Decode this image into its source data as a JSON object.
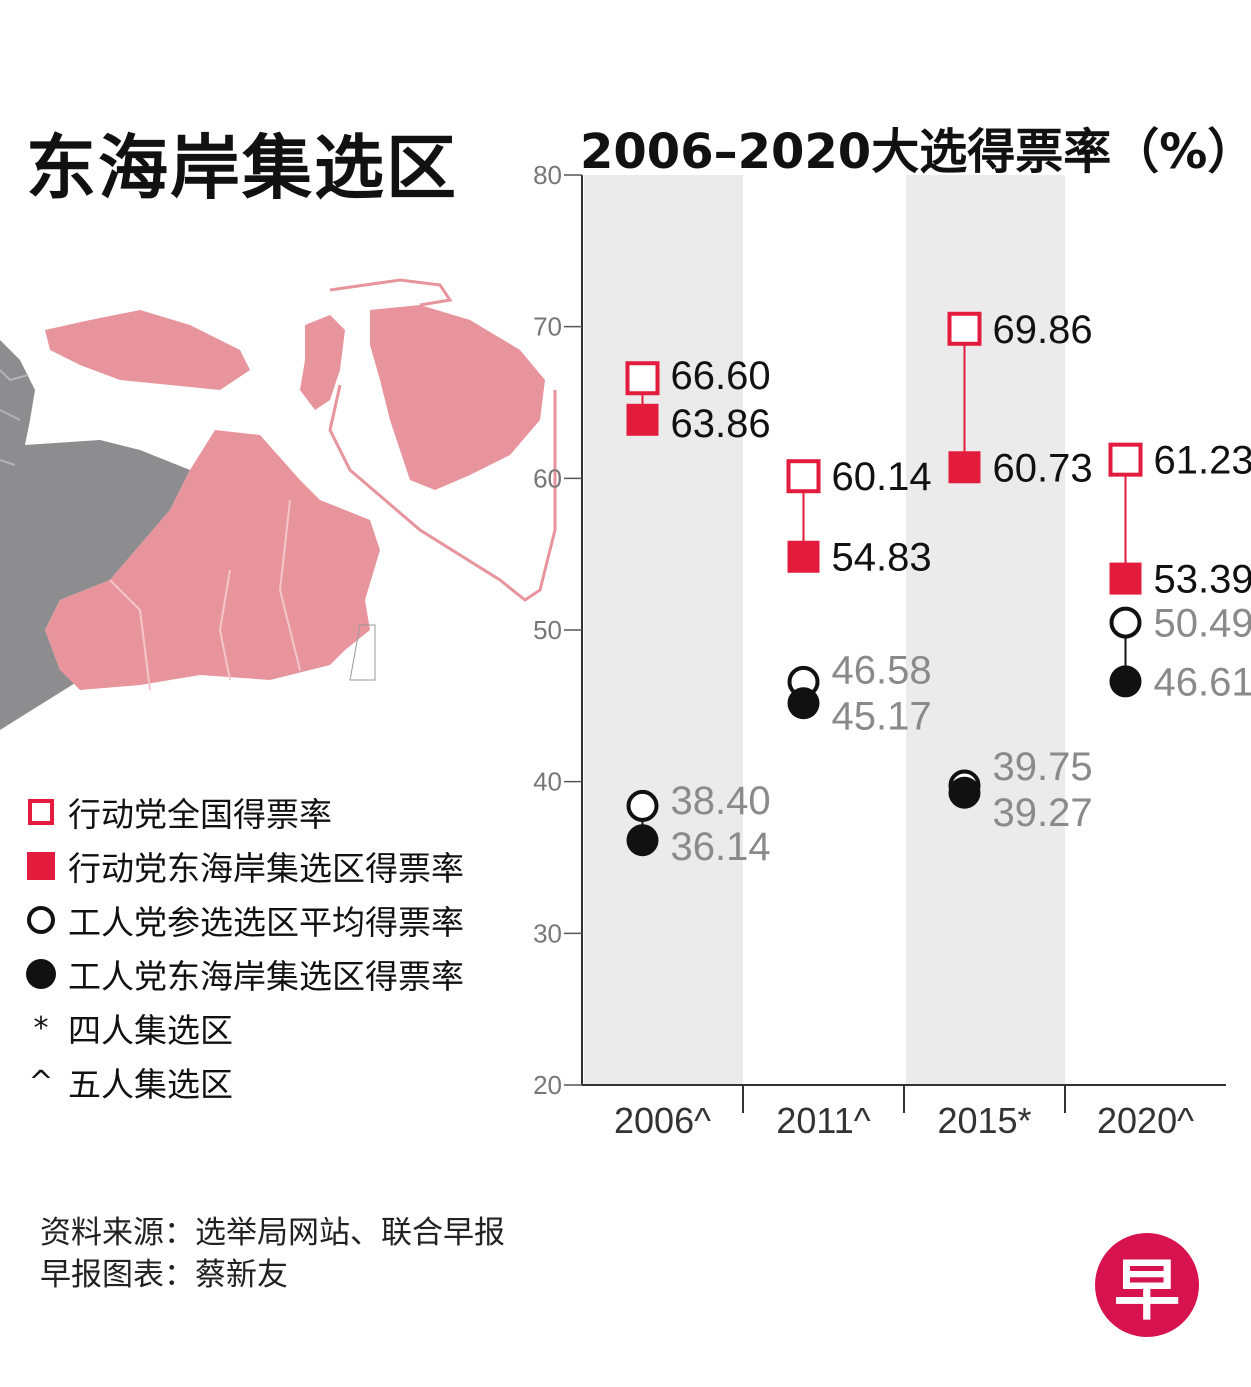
{
  "title": "东海岸集选区",
  "chart_title": "2006–2020大选得票率（%）",
  "legend": [
    {
      "symbol": "open-square",
      "label": "行动党全国得票率"
    },
    {
      "symbol": "filled-square",
      "label": "行动党东海岸集选区得票率"
    },
    {
      "symbol": "open-circle",
      "label": "工人党参选选区平均得票率"
    },
    {
      "symbol": "filled-circle",
      "label": "工人党东海岸集选区得票率"
    },
    {
      "symbol": "*",
      "label": "四人集选区"
    },
    {
      "symbol": "^",
      "label": "五人集选区"
    }
  ],
  "source": "资料来源：选举局网站、联合早报",
  "credit": "早报图表：蔡新友",
  "logo_text": "早",
  "colors": {
    "pap": "#e31b3c",
    "wp": "#111111",
    "wp_label": "#8a8a8a",
    "band": "#ebebeb",
    "map_pink": "#e8949c",
    "map_grey": "#8d8d8f"
  },
  "chart_data": {
    "type": "scatter",
    "title": "2006–2020大选得票率（%）",
    "categories": [
      "2006^",
      "2011^",
      "2015*",
      "2020^"
    ],
    "ylim": [
      20,
      80
    ],
    "yticks": [
      20,
      30,
      40,
      50,
      60,
      70,
      80
    ],
    "shaded_categories": [
      "2006^",
      "2015*"
    ],
    "grid": false,
    "series": [
      {
        "name": "行动党全国得票率",
        "marker": "open-square",
        "values": [
          66.6,
          60.14,
          69.86,
          61.23
        ]
      },
      {
        "name": "行动党东海岸集选区得票率",
        "marker": "filled-square",
        "values": [
          63.86,
          54.83,
          60.73,
          53.39
        ]
      },
      {
        "name": "工人党参选选区平均得票率",
        "marker": "open-circle",
        "values": [
          38.4,
          46.58,
          39.75,
          50.49
        ]
      },
      {
        "name": "工人党东海岸集选区得票率",
        "marker": "filled-circle",
        "values": [
          36.14,
          45.17,
          39.27,
          46.61
        ]
      }
    ]
  }
}
